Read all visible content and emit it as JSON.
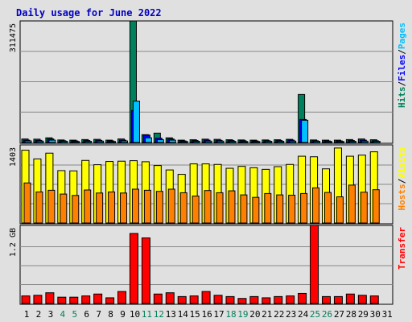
{
  "chart_data": {
    "type": "bar",
    "title": "Daily usage for June 2022",
    "days": [
      "1",
      "2",
      "3",
      "4",
      "5",
      "6",
      "7",
      "8",
      "9",
      "10",
      "11",
      "12",
      "13",
      "14",
      "15",
      "16",
      "17",
      "18",
      "19",
      "20",
      "21",
      "22",
      "23",
      "24",
      "25",
      "26",
      "27",
      "28",
      "29",
      "30",
      "31"
    ],
    "weekend_days": [
      "4",
      "5",
      "11",
      "12",
      "18",
      "19",
      "25",
      "26"
    ],
    "colors": {
      "background": "#e0e0e0",
      "title": "#0000c0",
      "hits": "#00805c",
      "files": "#0000ff",
      "pages": "#00c0ff",
      "visits": "#ffff00",
      "hosts": "#ff8000",
      "transfer": "#ff0000",
      "weekend_label": "#00805c"
    },
    "panels": [
      {
        "name": "hits-files-pages",
        "ymax": 311475,
        "ytick_label": "311475",
        "legend": [
          {
            "text": "Hits",
            "color": "#00805c"
          },
          {
            "text": "Files",
            "color": "#0000ff"
          },
          {
            "text": "Pages",
            "color": "#00c0ff"
          }
        ],
        "series": [
          {
            "name": "Hits",
            "color": "#00805c",
            "values": [
              9000,
              8500,
              12000,
              6500,
              6000,
              7500,
              8000,
              6000,
              9000,
              311475,
              20000,
              24000,
              12000,
              6000,
              7000,
              8500,
              8000,
              7000,
              6500,
              6000,
              6500,
              7000,
              8000,
              123000,
              6500,
              6000,
              6000,
              7500,
              9000,
              7000,
              null
            ]
          },
          {
            "name": "Files",
            "color": "#0000ff",
            "values": [
              6000,
              5500,
              9000,
              4500,
              4000,
              5000,
              5500,
              4000,
              6000,
              82000,
              19000,
              11000,
              9000,
              4000,
              5000,
              6000,
              5500,
              5000,
              4500,
              4000,
              4500,
              5000,
              6000,
              59000,
              4500,
              4000,
              4000,
              5000,
              6000,
              4500,
              null
            ]
          },
          {
            "name": "Pages",
            "color": "#00c0ff",
            "values": [
              4000,
              3500,
              6000,
              3000,
              2500,
              3000,
              3500,
              2500,
              4000,
              106000,
              12000,
              7000,
              6000,
              2500,
              3000,
              3500,
              3500,
              3000,
              2500,
              2500,
              3000,
              3000,
              3500,
              57000,
              3000,
              2500,
              2500,
              3000,
              3500,
              3000,
              null
            ]
          }
        ]
      },
      {
        "name": "visits-hosts",
        "ymax": 1403,
        "ytick_label": "1403",
        "legend": [
          {
            "text": "Hosts",
            "color": "#ff8000"
          },
          {
            "text": "Visits",
            "color": "#ffff00"
          }
        ],
        "series": [
          {
            "name": "Visits",
            "color": "#ffff00",
            "values": [
              1321,
              1163,
              1268,
              951,
              946,
              1136,
              1058,
              1117,
              1122,
              1131,
              1112,
              1043,
              963,
              883,
              1073,
              1073,
              1063,
              993,
              1028,
              1003,
              974,
              1023,
              1063,
              1212,
              1202,
              983,
              1361,
              1212,
              1232,
              1292,
              null
            ]
          },
          {
            "name": "Hosts",
            "color": "#ff8000",
            "values": [
              727,
              564,
              594,
              525,
              500,
              599,
              544,
              564,
              544,
              614,
              594,
              574,
              614,
              549,
              490,
              589,
              549,
              584,
              510,
              465,
              535,
              510,
              505,
              535,
              638,
              554,
              475,
              688,
              559,
              604,
              null
            ]
          }
        ]
      },
      {
        "name": "transfer",
        "ymax": 1.2,
        "ytick_label": "1.2 GB",
        "legend": [
          {
            "text": "Transfer",
            "color": "#ff0000"
          }
        ],
        "series": [
          {
            "name": "Transfer",
            "color": "#ff0000",
            "values": [
              0.12,
              0.13,
              0.17,
              0.1,
              0.1,
              0.12,
              0.15,
              0.09,
              0.19,
              1.11,
              1.04,
              0.15,
              0.17,
              0.11,
              0.12,
              0.19,
              0.13,
              0.11,
              0.08,
              0.11,
              0.09,
              0.11,
              0.12,
              0.16,
              1.24,
              0.11,
              0.11,
              0.15,
              0.13,
              0.12,
              null
            ]
          }
        ]
      }
    ]
  }
}
